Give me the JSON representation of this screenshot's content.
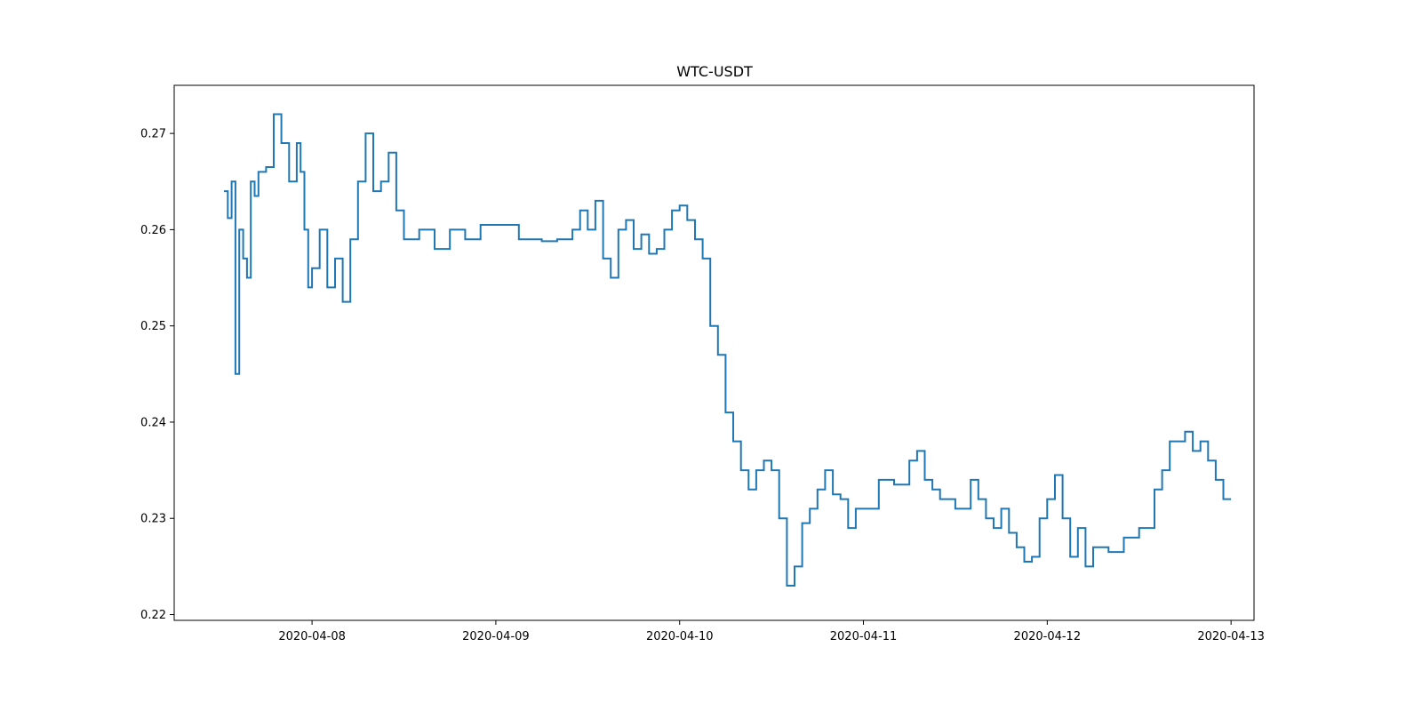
{
  "chart_data": {
    "type": "line",
    "title": "WTC-USDT",
    "xlabel": "",
    "ylabel": "",
    "xlim": [
      "2020-04-07 06:00",
      "2020-04-13 03:00"
    ],
    "ylim": [
      0.2194,
      0.275
    ],
    "x_ticks": [
      "2020-04-08",
      "2020-04-09",
      "2020-04-10",
      "2020-04-11",
      "2020-04-12",
      "2020-04-13"
    ],
    "y_ticks": [
      "0.22",
      "0.23",
      "0.24",
      "0.25",
      "0.26",
      "0.27"
    ],
    "grid": false,
    "line_color": "#1f77b4",
    "series": [
      {
        "x": [
          "2020-04-07 12:30",
          "2020-04-07 13:00",
          "2020-04-07 13:30",
          "2020-04-07 14:00",
          "2020-04-07 14:30",
          "2020-04-07 15:00",
          "2020-04-07 15:30",
          "2020-04-07 16:00",
          "2020-04-07 16:30",
          "2020-04-07 17:00",
          "2020-04-07 18:00",
          "2020-04-07 19:00",
          "2020-04-07 20:00",
          "2020-04-07 21:00",
          "2020-04-07 22:00",
          "2020-04-07 22:30",
          "2020-04-07 23:00",
          "2020-04-07 23:30",
          "2020-04-08 00:00",
          "2020-04-08 01:00",
          "2020-04-08 02:00",
          "2020-04-08 03:00",
          "2020-04-08 04:00",
          "2020-04-08 05:00",
          "2020-04-08 06:00",
          "2020-04-08 07:00",
          "2020-04-08 08:00",
          "2020-04-08 09:00",
          "2020-04-08 10:00",
          "2020-04-08 11:00",
          "2020-04-08 12:00",
          "2020-04-08 14:00",
          "2020-04-08 16:00",
          "2020-04-08 18:00",
          "2020-04-08 20:00",
          "2020-04-08 22:00",
          "2020-04-09 00:00",
          "2020-04-09 03:00",
          "2020-04-09 06:00",
          "2020-04-09 08:00",
          "2020-04-09 10:00",
          "2020-04-09 11:00",
          "2020-04-09 12:00",
          "2020-04-09 13:00",
          "2020-04-09 14:00",
          "2020-04-09 15:00",
          "2020-04-09 16:00",
          "2020-04-09 17:00",
          "2020-04-09 18:00",
          "2020-04-09 19:00",
          "2020-04-09 20:00",
          "2020-04-09 21:00",
          "2020-04-09 22:00",
          "2020-04-09 23:00",
          "2020-04-10 00:00",
          "2020-04-10 01:00",
          "2020-04-10 02:00",
          "2020-04-10 03:00",
          "2020-04-10 04:00",
          "2020-04-10 05:00",
          "2020-04-10 06:00",
          "2020-04-10 07:00",
          "2020-04-10 08:00",
          "2020-04-10 09:00",
          "2020-04-10 10:00",
          "2020-04-10 11:00",
          "2020-04-10 12:00",
          "2020-04-10 13:00",
          "2020-04-10 14:00",
          "2020-04-10 15:00",
          "2020-04-10 16:00",
          "2020-04-10 17:00",
          "2020-04-10 18:00",
          "2020-04-10 19:00",
          "2020-04-10 20:00",
          "2020-04-10 21:00",
          "2020-04-10 22:00",
          "2020-04-10 23:00",
          "2020-04-11 00:00",
          "2020-04-11 02:00",
          "2020-04-11 04:00",
          "2020-04-11 06:00",
          "2020-04-11 07:00",
          "2020-04-11 08:00",
          "2020-04-11 09:00",
          "2020-04-11 10:00",
          "2020-04-11 12:00",
          "2020-04-11 14:00",
          "2020-04-11 15:00",
          "2020-04-11 16:00",
          "2020-04-11 17:00",
          "2020-04-11 18:00",
          "2020-04-11 19:00",
          "2020-04-11 20:00",
          "2020-04-11 21:00",
          "2020-04-11 22:00",
          "2020-04-11 23:00",
          "2020-04-12 00:00",
          "2020-04-12 01:00",
          "2020-04-12 02:00",
          "2020-04-12 03:00",
          "2020-04-12 04:00",
          "2020-04-12 05:00",
          "2020-04-12 06:00",
          "2020-04-12 08:00",
          "2020-04-12 10:00",
          "2020-04-12 12:00",
          "2020-04-12 14:00",
          "2020-04-12 15:00",
          "2020-04-12 16:00",
          "2020-04-12 17:00",
          "2020-04-12 18:00",
          "2020-04-12 19:00",
          "2020-04-12 20:00",
          "2020-04-12 21:00",
          "2020-04-12 22:00",
          "2020-04-12 23:00",
          "2020-04-13 00:00"
        ],
        "values": [
          0.264,
          0.2612,
          0.265,
          0.245,
          0.26,
          0.257,
          0.255,
          0.265,
          0.2635,
          0.266,
          0.2665,
          0.272,
          0.269,
          0.265,
          0.269,
          0.266,
          0.26,
          0.254,
          0.256,
          0.26,
          0.254,
          0.257,
          0.2525,
          0.259,
          0.265,
          0.27,
          0.264,
          0.265,
          0.268,
          0.262,
          0.259,
          0.26,
          0.258,
          0.26,
          0.259,
          0.2605,
          0.2605,
          0.259,
          0.2588,
          0.259,
          0.26,
          0.262,
          0.26,
          0.263,
          0.257,
          0.255,
          0.26,
          0.261,
          0.258,
          0.2595,
          0.2575,
          0.258,
          0.26,
          0.262,
          0.2625,
          0.261,
          0.259,
          0.257,
          0.25,
          0.247,
          0.241,
          0.238,
          0.235,
          0.233,
          0.235,
          0.236,
          0.235,
          0.23,
          0.223,
          0.225,
          0.2295,
          0.231,
          0.233,
          0.235,
          0.2325,
          0.232,
          0.229,
          0.231,
          0.231,
          0.234,
          0.2335,
          0.236,
          0.237,
          0.234,
          0.233,
          0.232,
          0.231,
          0.234,
          0.232,
          0.23,
          0.229,
          0.231,
          0.2285,
          0.227,
          0.2255,
          0.226,
          0.23,
          0.232,
          0.2345,
          0.23,
          0.226,
          0.229,
          0.225,
          0.227,
          0.2265,
          0.228,
          0.229,
          0.233,
          0.235,
          0.238,
          0.238,
          0.239,
          0.237,
          0.238,
          0.236,
          0.234,
          0.232,
          0.232
        ]
      }
    ]
  }
}
